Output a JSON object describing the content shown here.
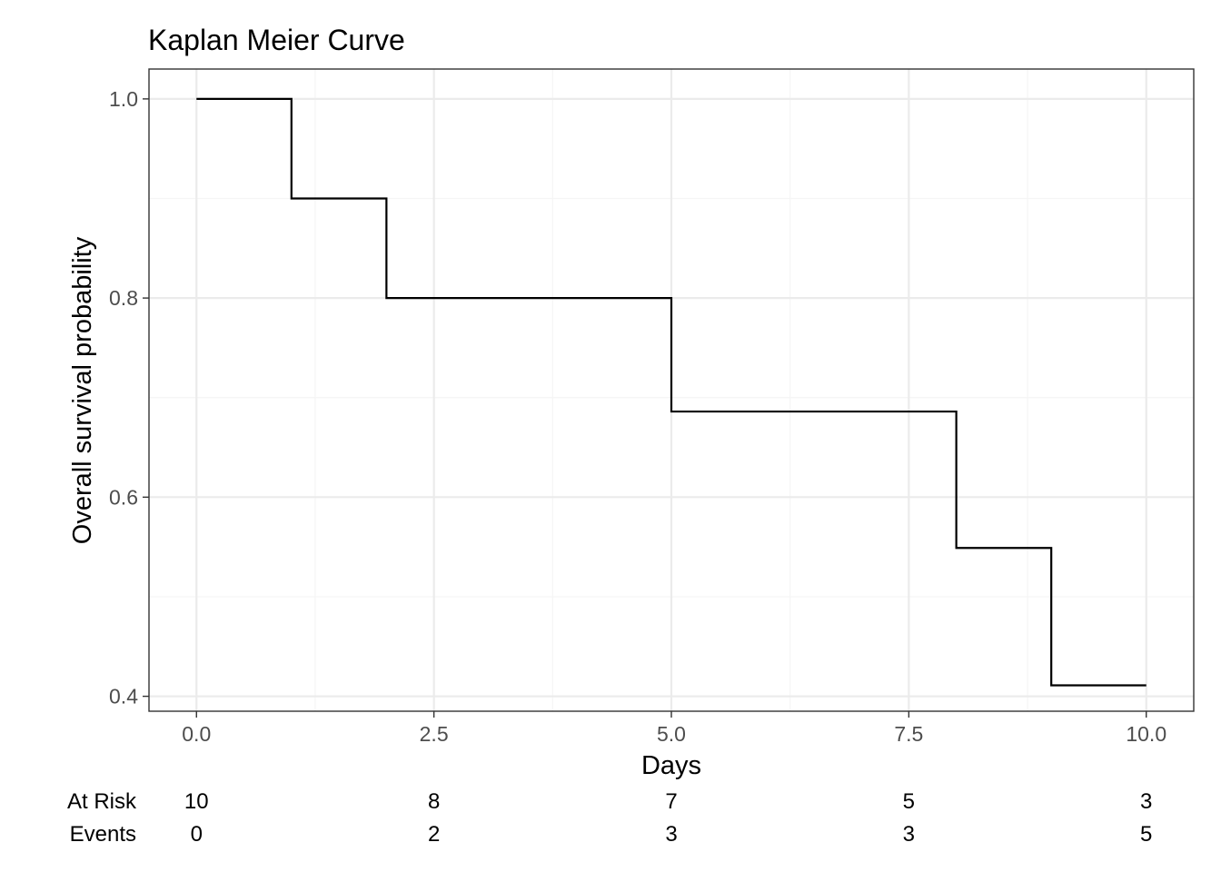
{
  "chart_data": {
    "type": "line",
    "subtype": "step",
    "title": "Kaplan Meier Curve",
    "xlabel": "Days",
    "ylabel": "Overall survival probability",
    "xlim": [
      -0.5,
      10.5
    ],
    "ylim": [
      0.385,
      1.03
    ],
    "x_ticks": [
      0,
      2.5,
      5,
      7.5,
      10
    ],
    "x_tick_labels": [
      "0.0",
      "2.5",
      "5.0",
      "7.5",
      "10.0"
    ],
    "y_ticks": [
      0.4,
      0.6,
      0.8,
      1.0
    ],
    "y_tick_labels": [
      "0.4",
      "0.6",
      "0.8",
      "1.0"
    ],
    "grid": true,
    "series": [
      {
        "x": [
          0,
          1,
          2,
          5,
          8,
          9,
          10
        ],
        "y": [
          1.0,
          0.9,
          0.8,
          0.686,
          0.549,
          0.411,
          0.411
        ]
      }
    ],
    "risk_table": {
      "rows": [
        {
          "label": "At Risk",
          "values": [
            "10",
            "8",
            "7",
            "5",
            "3"
          ]
        },
        {
          "label": "Events",
          "values": [
            "0",
            "2",
            "3",
            "3",
            "5"
          ]
        }
      ]
    }
  },
  "colors": {
    "line": "#000000",
    "panel_border": "#333333",
    "grid_major": "#ebebeb",
    "grid_minor": "#f5f5f5",
    "tick_text": "#4d4d4d"
  }
}
